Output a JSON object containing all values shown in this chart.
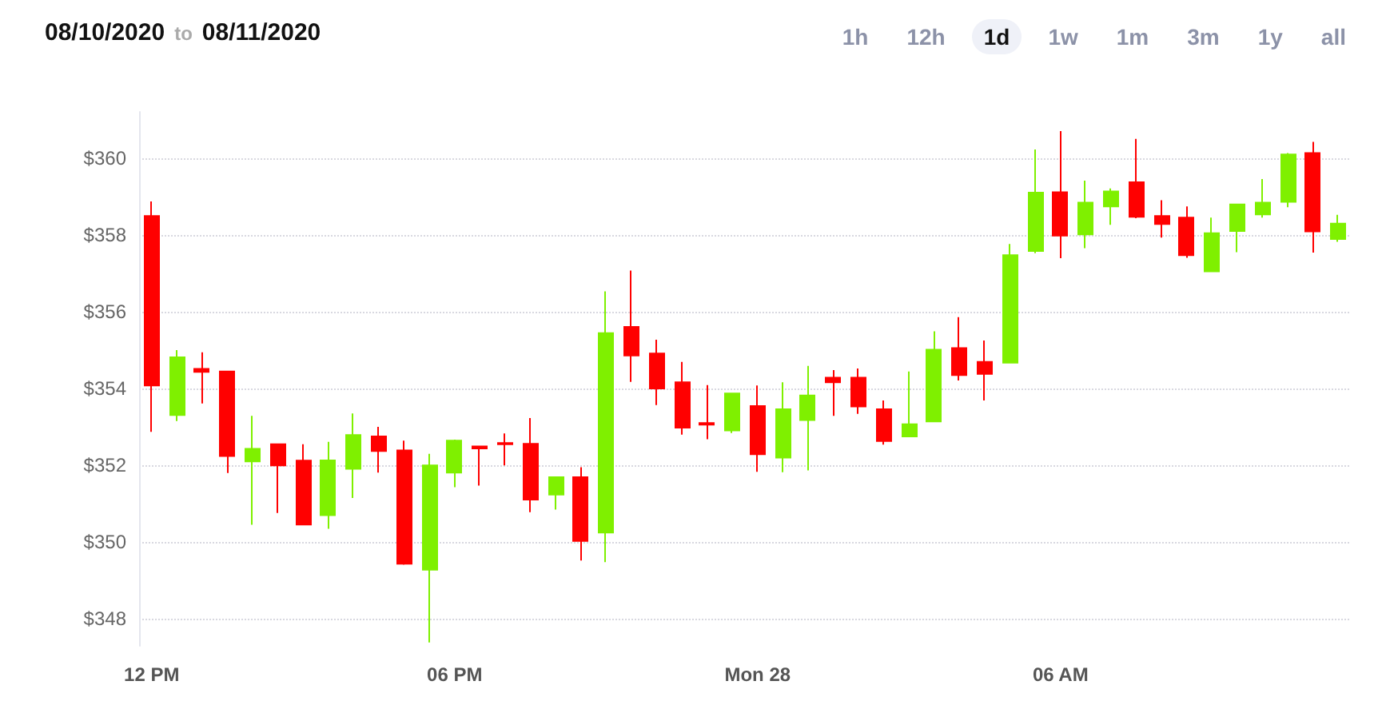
{
  "chart_data": {
    "type": "candlestick",
    "annotations": [
      "08/10/2020",
      "to",
      "08/11/2020",
      "1h",
      "12h",
      "1d",
      "1w",
      "1m",
      "3m",
      "1y",
      "all"
    ],
    "categories": [
      "12 PM",
      null,
      null,
      null,
      null,
      null,
      null,
      null,
      null,
      null,
      null,
      null,
      "06 PM",
      null,
      null,
      null,
      null,
      null,
      null,
      null,
      null,
      null,
      null,
      null,
      "Mon 28",
      null,
      null,
      null,
      null,
      null,
      null,
      null,
      null,
      null,
      null,
      null,
      "06 AM",
      null,
      null,
      null,
      null,
      null,
      null,
      null,
      null,
      null,
      null,
      null
    ],
    "ohlc": [
      [
        358.49,
        358.87,
        352.87,
        354.08
      ],
      [
        353.31,
        355.0,
        353.15,
        354.81
      ],
      [
        354.51,
        354.94,
        353.61,
        354.43
      ],
      [
        354.44,
        354.44,
        351.8,
        352.24
      ],
      [
        352.1,
        353.29,
        350.45,
        352.43
      ],
      [
        352.55,
        352.55,
        350.76,
        352.0
      ],
      [
        352.12,
        352.55,
        350.46,
        350.46
      ],
      [
        350.7,
        352.61,
        350.35,
        352.13
      ],
      [
        351.91,
        353.35,
        351.15,
        352.79
      ],
      [
        352.75,
        353.0,
        351.81,
        352.37
      ],
      [
        352.39,
        352.64,
        349.41,
        349.44
      ],
      [
        349.28,
        352.3,
        347.39,
        352.0
      ],
      [
        351.81,
        352.67,
        351.43,
        352.64
      ],
      [
        352.49,
        352.49,
        351.47,
        352.44
      ],
      [
        352.58,
        352.83,
        352.0,
        352.55
      ],
      [
        352.56,
        353.23,
        350.78,
        351.11
      ],
      [
        351.24,
        351.69,
        350.85,
        351.69
      ],
      [
        351.69,
        351.95,
        349.52,
        350.03
      ],
      [
        350.25,
        356.53,
        349.48,
        355.44
      ],
      [
        355.6,
        357.07,
        354.17,
        354.86
      ],
      [
        354.91,
        355.27,
        353.57,
        354.0
      ],
      [
        354.16,
        354.69,
        352.8,
        352.98
      ],
      [
        353.1,
        354.09,
        352.68,
        353.06
      ],
      [
        352.91,
        353.87,
        352.84,
        353.87
      ],
      [
        353.54,
        354.08,
        351.83,
        352.29
      ],
      [
        352.2,
        354.16,
        351.82,
        353.46
      ],
      [
        353.18,
        354.59,
        351.87,
        353.82
      ],
      [
        354.28,
        354.48,
        353.29,
        354.16
      ],
      [
        354.28,
        354.52,
        353.34,
        353.53
      ],
      [
        353.46,
        353.69,
        352.54,
        352.63
      ],
      [
        352.75,
        354.44,
        352.75,
        353.07
      ],
      [
        353.14,
        355.49,
        353.14,
        355.01
      ],
      [
        355.05,
        355.86,
        354.21,
        354.35
      ],
      [
        354.69,
        355.25,
        353.69,
        354.38
      ],
      [
        354.67,
        357.76,
        354.67,
        357.47
      ],
      [
        357.58,
        360.22,
        357.52,
        359.1
      ],
      [
        359.11,
        360.7,
        357.39,
        357.98
      ],
      [
        358.01,
        359.41,
        357.65,
        358.84
      ],
      [
        358.74,
        359.21,
        358.26,
        359.13
      ],
      [
        359.37,
        360.5,
        358.43,
        358.47
      ],
      [
        358.49,
        358.9,
        357.93,
        358.28
      ],
      [
        358.45,
        358.74,
        357.4,
        357.47
      ],
      [
        357.05,
        358.45,
        357.05,
        358.04
      ],
      [
        358.1,
        358.79,
        357.55,
        358.79
      ],
      [
        358.53,
        359.45,
        358.45,
        358.84
      ],
      [
        358.86,
        360.13,
        358.72,
        360.09
      ],
      [
        360.13,
        360.42,
        357.54,
        358.09
      ],
      [
        357.89,
        358.52,
        357.82,
        358.29
      ]
    ],
    "colors": [
      "#ff0000",
      "#7ff000",
      "#ff0000",
      "#ff0000",
      "#7ff000",
      "#ff0000",
      "#ff0000",
      "#7ff000",
      "#7ff000",
      "#ff0000",
      "#ff0000",
      "#7ff000",
      "#7ff000",
      "#ff0000",
      "#ff0000",
      "#ff0000",
      "#7ff000",
      "#ff0000",
      "#7ff000",
      "#ff0000",
      "#ff0000",
      "#ff0000",
      "#ff0000",
      "#7ff000",
      "#ff0000",
      "#7ff000",
      "#7ff000",
      "#ff0000",
      "#ff0000",
      "#ff0000",
      "#7ff000",
      "#7ff000",
      "#ff0000",
      "#ff0000",
      "#7ff000",
      "#7ff000",
      "#ff0000",
      "#7ff000",
      "#7ff000",
      "#ff0000",
      "#ff0000",
      "#ff0000",
      "#7ff000",
      "#7ff000",
      "#7ff000",
      "#7ff000",
      "#ff0000",
      "#7ff000"
    ],
    "ylim": [
      347.3,
      361.2
    ],
    "yticks": [
      {
        "value": 348,
        "label": "$348"
      },
      {
        "value": 350,
        "label": "$350"
      },
      {
        "value": 352,
        "label": "$352"
      },
      {
        "value": 354,
        "label": "$354"
      },
      {
        "value": 356,
        "label": "$356"
      },
      {
        "value": 358,
        "label": "$358"
      },
      {
        "value": 360,
        "label": "$360"
      }
    ],
    "grid": "y"
  }
}
